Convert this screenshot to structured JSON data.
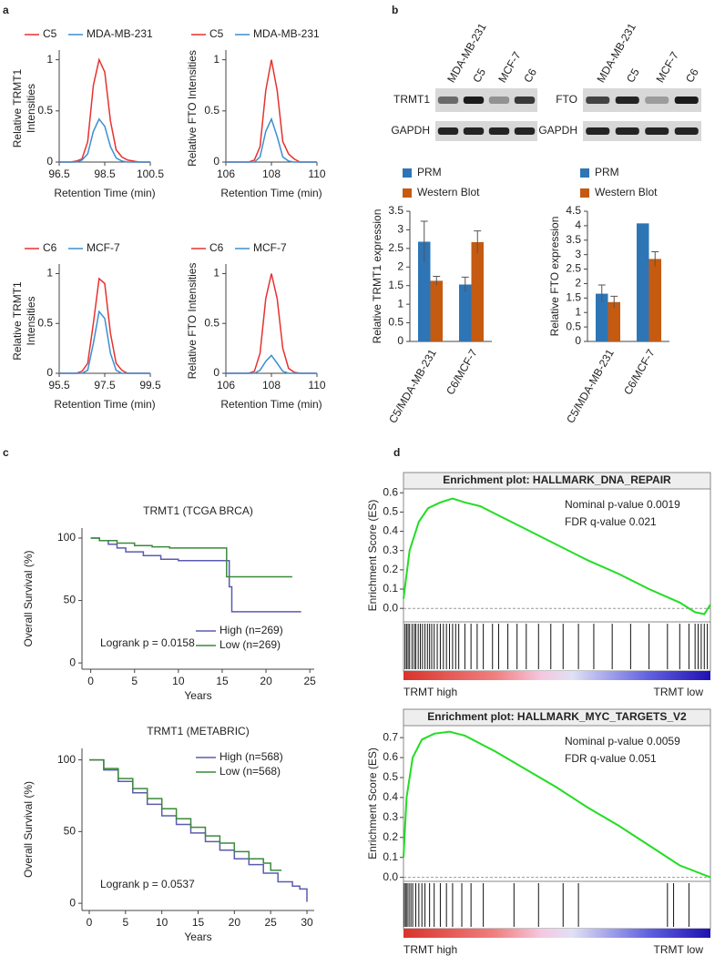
{
  "panels": [
    "a",
    "b",
    "c",
    "d"
  ],
  "blots": [
    {
      "protein": "TRMT1",
      "control": "GAPDH",
      "lanes": [
        "MDA-MB-231",
        "C5",
        "MCF-7",
        "C6"
      ]
    },
    {
      "protein": "FTO",
      "control": "GAPDH",
      "lanes": [
        "MDA-MB-231",
        "C5",
        "MCF-7",
        "C6"
      ]
    }
  ],
  "chart_data": [
    {
      "type": "line",
      "ylabel": [
        "Relative TRMT1",
        "Intensities"
      ],
      "xlabel": "Retention Time (min)",
      "xlim": [
        96.5,
        100.5
      ],
      "xticks": [
        96.5,
        98.5,
        100.5
      ],
      "ylim": [
        0,
        1.05
      ],
      "yticks": [
        0,
        0.5,
        1
      ],
      "x": [
        96.5,
        96.75,
        97,
        97.25,
        97.5,
        97.75,
        98,
        98.25,
        98.5,
        98.75,
        99,
        99.25,
        99.5,
        99.75,
        100,
        100.25,
        100.5
      ],
      "series": [
        {
          "name": "C5",
          "color": "#e8312f",
          "values": [
            0,
            0,
            0,
            0.01,
            0.03,
            0.2,
            0.75,
            1,
            0.88,
            0.4,
            0.12,
            0.05,
            0.02,
            0.01,
            0,
            0,
            0
          ]
        },
        {
          "name": "MDA-MB-231",
          "color": "#3b8fd0",
          "values": [
            0,
            0,
            0,
            0,
            0.02,
            0.08,
            0.3,
            0.42,
            0.35,
            0.15,
            0.04,
            0.01,
            0,
            0,
            0,
            0,
            0
          ]
        }
      ]
    },
    {
      "type": "line",
      "ylabel": [
        "Relative FTO Intensities"
      ],
      "xlabel": "Retention Time (min)",
      "xlim": [
        106,
        110
      ],
      "xticks": [
        106,
        108,
        110
      ],
      "ylim": [
        0,
        1.05
      ],
      "yticks": [
        0,
        0.5,
        1
      ],
      "x": [
        106,
        106.25,
        106.5,
        106.75,
        107,
        107.25,
        107.5,
        107.75,
        108,
        108.25,
        108.5,
        108.75,
        109,
        109.25,
        109.5,
        109.75,
        110
      ],
      "series": [
        {
          "name": "C5",
          "color": "#e8312f",
          "values": [
            0,
            0,
            0,
            0,
            0,
            0.02,
            0.15,
            0.7,
            1,
            0.7,
            0.2,
            0.08,
            0.03,
            0,
            0,
            0,
            0
          ]
        },
        {
          "name": "MDA-MB-231",
          "color": "#3b8fd0",
          "values": [
            0,
            0,
            0,
            0,
            0,
            0,
            0.05,
            0.3,
            0.42,
            0.25,
            0.05,
            0.01,
            0,
            0,
            0,
            0,
            0
          ]
        }
      ]
    },
    {
      "type": "line",
      "ylabel": [
        "Relative TRMT1",
        "Intensities"
      ],
      "xlabel": "Retention Time (min)",
      "xlim": [
        95.5,
        99.5
      ],
      "xticks": [
        95.5,
        97.5,
        99.5
      ],
      "ylim": [
        0,
        1.05
      ],
      "yticks": [
        0,
        0.5,
        1
      ],
      "x": [
        95.5,
        95.75,
        96,
        96.25,
        96.5,
        96.75,
        97,
        97.25,
        97.5,
        97.75,
        98,
        98.25,
        98.5,
        98.75,
        99,
        99.25,
        99.5
      ],
      "series": [
        {
          "name": "C6",
          "color": "#e8312f",
          "values": [
            0,
            0,
            0,
            0,
            0.02,
            0.1,
            0.5,
            0.95,
            0.9,
            0.4,
            0.1,
            0.03,
            0,
            0,
            0,
            0,
            0
          ]
        },
        {
          "name": "MCF-7",
          "color": "#3b8fd0",
          "values": [
            0,
            0,
            0,
            0,
            0,
            0.03,
            0.3,
            0.62,
            0.55,
            0.2,
            0.03,
            0,
            0,
            0,
            0,
            0,
            0
          ]
        }
      ]
    },
    {
      "type": "line",
      "ylabel": [
        "Relative FTO Intensities"
      ],
      "xlabel": "Retention Time (min)",
      "xlim": [
        106,
        110
      ],
      "xticks": [
        106,
        108,
        110
      ],
      "ylim": [
        0,
        1.05
      ],
      "yticks": [
        0,
        0.5,
        1
      ],
      "x": [
        106,
        106.25,
        106.5,
        106.75,
        107,
        107.25,
        107.5,
        107.75,
        108,
        108.25,
        108.5,
        108.75,
        109,
        109.25,
        109.5,
        109.75,
        110
      ],
      "series": [
        {
          "name": "C6",
          "color": "#e8312f",
          "values": [
            0,
            0,
            0,
            0,
            0,
            0.02,
            0.2,
            0.75,
            1,
            0.75,
            0.25,
            0.05,
            0.01,
            0,
            0,
            0,
            0
          ]
        },
        {
          "name": "MCF-7",
          "color": "#3b8fd0",
          "values": [
            0,
            0,
            0,
            0,
            0,
            0,
            0.03,
            0.12,
            0.18,
            0.1,
            0.02,
            0,
            0,
            0,
            0,
            0,
            0
          ]
        }
      ]
    },
    {
      "type": "bar",
      "ylabel": "Relative TRMT1 expression",
      "categories": [
        "C5/MDA-MB-231",
        "C6/MCF-7"
      ],
      "ylim": [
        0,
        3.5
      ],
      "yticks": [
        0,
        0.5,
        1,
        1.5,
        2,
        2.5,
        3,
        3.5
      ],
      "series": [
        {
          "name": "PRM",
          "color": "#2e75b6",
          "values": [
            2.68,
            1.53
          ],
          "errors": [
            0.55,
            0.2
          ]
        },
        {
          "name": "Western Blot",
          "color": "#c55a11",
          "values": [
            1.63,
            2.67
          ],
          "errors": [
            0.12,
            0.3
          ]
        }
      ]
    },
    {
      "type": "bar",
      "ylabel": "Relative FTO expression",
      "categories": [
        "C5/MDA-MB-231",
        "C6/MCF-7"
      ],
      "ylim": [
        0,
        4.5
      ],
      "yticks": [
        0,
        0.5,
        1,
        1.5,
        2,
        2.5,
        3,
        3.5,
        4,
        4.5
      ],
      "series": [
        {
          "name": "PRM",
          "color": "#2e75b6",
          "values": [
            1.65,
            4.08
          ],
          "errors": [
            0.3,
            null
          ]
        },
        {
          "name": "Western Blot",
          "color": "#c55a11",
          "values": [
            1.36,
            2.85
          ],
          "errors": [
            0.2,
            0.25
          ]
        }
      ]
    },
    {
      "type": "step",
      "title": "TRMT1 (TCGA BRCA)",
      "ylabel": "Overall Survival (%)",
      "xlabel": "Years",
      "xlim": [
        -1,
        25.5
      ],
      "xticks": [
        0,
        5,
        10,
        15,
        20,
        25
      ],
      "ylim": [
        -5,
        108
      ],
      "yticks": [
        0,
        50,
        100
      ],
      "legend": "lower right",
      "annotation": "Logrank p = 0.0158",
      "series": [
        {
          "name": "High (n=269)",
          "color": "#5b5bb0",
          "x": [
            0,
            1,
            2,
            3,
            4,
            6,
            8,
            10,
            15.8,
            16.1,
            24
          ],
          "values": [
            100,
            98,
            95,
            92,
            89,
            86,
            83,
            82,
            61,
            41,
            41
          ]
        },
        {
          "name": "Low (n=269)",
          "color": "#3a8a3a",
          "x": [
            0,
            1,
            3,
            5,
            7,
            9,
            15.5,
            23
          ],
          "values": [
            100,
            98,
            96,
            94,
            93,
            92,
            69,
            69
          ]
        }
      ]
    },
    {
      "type": "step",
      "title": "TRMT1 (METABRIC)",
      "ylabel": "Overall Survival (%)",
      "xlabel": "Years",
      "xlim": [
        -1,
        31
      ],
      "xticks": [
        0,
        5,
        10,
        15,
        20,
        25,
        30
      ],
      "ylim": [
        -5,
        108
      ],
      "yticks": [
        0,
        50,
        100
      ],
      "legend": "upper right",
      "annotation": "Logrank p = 0.0537",
      "series": [
        {
          "name": "High (n=568)",
          "color": "#5b5bb0",
          "x": [
            0,
            2,
            4,
            6,
            8,
            10,
            12,
            14,
            16,
            18,
            20,
            22,
            24,
            26,
            28,
            29,
            30
          ],
          "values": [
            100,
            93,
            85,
            77,
            69,
            61,
            55,
            49,
            43,
            37,
            31,
            27,
            21,
            15,
            12,
            10,
            1
          ]
        },
        {
          "name": "Low (n=568)",
          "color": "#3a8a3a",
          "x": [
            0,
            2,
            4,
            6,
            8,
            10,
            12,
            14,
            16,
            18,
            20,
            22,
            24,
            25,
            26.5
          ],
          "values": [
            100,
            94,
            87,
            80,
            73,
            66,
            59,
            53,
            47,
            42,
            36,
            31,
            28,
            23,
            23
          ]
        }
      ]
    },
    {
      "type": "gsea",
      "title": "Enrichment plot: HALLMARK_DNA_REPAIR",
      "ylabel": "Enrichment Score (ES)",
      "ylim": [
        -0.07,
        0.62
      ],
      "yticks": [
        {
          "value": 0,
          "label": "0.0"
        },
        0.1,
        0.2,
        0.3,
        0.4,
        0.5,
        0.6
      ],
      "annotations": [
        "Nominal p-value 0.0019",
        "FDR q-value 0.021"
      ],
      "xlabels": [
        "TRMT high",
        "TRMT low"
      ],
      "color": "#22dd22",
      "x": [
        0,
        0.02,
        0.05,
        0.08,
        0.12,
        0.16,
        0.2,
        0.25,
        0.3,
        0.4,
        0.5,
        0.6,
        0.7,
        0.8,
        0.9,
        0.95,
        0.98,
        1
      ],
      "values": [
        0.05,
        0.3,
        0.45,
        0.52,
        0.55,
        0.57,
        0.55,
        0.53,
        0.49,
        0.41,
        0.33,
        0.25,
        0.18,
        0.1,
        0.03,
        -0.02,
        -0.03,
        0.02
      ],
      "hits": [
        0.005,
        0.01,
        0.015,
        0.02,
        0.028,
        0.035,
        0.04,
        0.048,
        0.055,
        0.062,
        0.07,
        0.078,
        0.085,
        0.092,
        0.1,
        0.11,
        0.12,
        0.13,
        0.14,
        0.15,
        0.16,
        0.17,
        0.18,
        0.2,
        0.22,
        0.24,
        0.26,
        0.29,
        0.31,
        0.34,
        0.37,
        0.4,
        0.44,
        0.48,
        0.52,
        0.57,
        0.62,
        0.68,
        0.74,
        0.8,
        0.86,
        0.9,
        0.93,
        0.95,
        0.96,
        0.97,
        0.98,
        0.99
      ]
    },
    {
      "type": "gsea",
      "title": "Enrichment plot: HALLMARK_MYC_TARGETS_V2",
      "ylabel": "Enrichment Score (ES)",
      "ylim": [
        -0.02,
        0.76
      ],
      "yticks": [
        {
          "value": 0,
          "label": "0.0"
        },
        0.1,
        0.2,
        0.3,
        0.4,
        0.5,
        0.6,
        0.7
      ],
      "annotations": [
        "Nominal p-value 0.0059",
        "FDR q-value 0.051"
      ],
      "xlabels": [
        "TRMT high",
        "TRMT low"
      ],
      "color": "#22dd22",
      "x": [
        0,
        0.01,
        0.03,
        0.06,
        0.1,
        0.15,
        0.2,
        0.3,
        0.4,
        0.5,
        0.6,
        0.7,
        0.8,
        0.9,
        0.95,
        1
      ],
      "values": [
        0.1,
        0.4,
        0.6,
        0.69,
        0.72,
        0.73,
        0.71,
        0.63,
        0.54,
        0.45,
        0.35,
        0.26,
        0.16,
        0.06,
        0.03,
        0
      ],
      "hits": [
        0.003,
        0.008,
        0.012,
        0.018,
        0.024,
        0.03,
        0.04,
        0.05,
        0.06,
        0.07,
        0.085,
        0.1,
        0.12,
        0.14,
        0.16,
        0.19,
        0.22,
        0.26,
        0.36,
        0.44,
        0.52,
        0.57,
        0.86,
        0.88,
        0.93
      ]
    }
  ]
}
